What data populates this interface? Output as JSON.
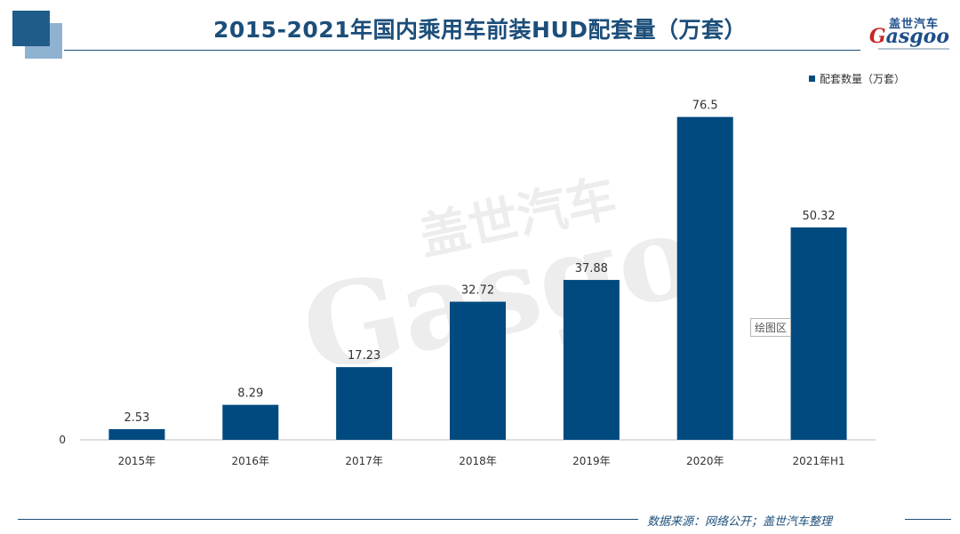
{
  "header": {
    "title": "2015-2021年国内乘用车前装HUD配套量（万套）",
    "logo_cn": "盖世汽车",
    "logo_en_initial": "G",
    "logo_en_rest": "asgoo"
  },
  "watermark": {
    "cn": "盖世汽车",
    "en": "Gasgoo"
  },
  "chart_data": {
    "type": "bar",
    "categories": [
      "2015年",
      "2016年",
      "2017年",
      "2018年",
      "2019年",
      "2020年",
      "2021年H1"
    ],
    "series": [
      {
        "name": "配套数量（万套）",
        "values": [
          2.53,
          8.29,
          17.23,
          32.72,
          37.88,
          76.5,
          50.32
        ],
        "color": "#004a80"
      }
    ],
    "value_labels": [
      "2.53",
      "8.29",
      "17.23",
      "32.72",
      "37.88",
      "76.5",
      "50.32"
    ],
    "y_tick_labels": [
      "0"
    ],
    "ylim": [
      0,
      85
    ],
    "grid": false,
    "legend_position": "top-right"
  },
  "legend": {
    "label": "配套数量（万套）"
  },
  "plot_area_tag": "绘图区",
  "footer": {
    "source": "数据来源：网络公开；盖世汽车整理"
  }
}
